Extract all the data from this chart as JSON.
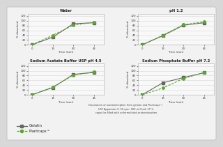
{
  "bg_color": "#d8d8d8",
  "panel_bg": "#efefef",
  "titles": [
    "Water",
    "pH 1.2",
    "Sodium Acetate Buffer USP pH 4.5",
    "Sodium Phosphate Buffer pH 7.2"
  ],
  "time_points": [
    0,
    15,
    30,
    45
  ],
  "gelatin_data": [
    [
      0,
      32,
      88,
      92
    ],
    [
      0,
      38,
      82,
      92
    ],
    [
      0,
      30,
      85,
      93
    ],
    [
      0,
      50,
      72,
      92
    ]
  ],
  "plantcaps_data": [
    [
      0,
      40,
      82,
      94
    ],
    [
      0,
      40,
      84,
      96
    ],
    [
      0,
      32,
      82,
      96
    ],
    [
      0,
      28,
      68,
      93
    ]
  ],
  "gelatin_color": "#666666",
  "plantcaps_color": "#5aab2a",
  "xlabel": "Time (min)",
  "ylabel": "% dissolved",
  "ylim": [
    0,
    130
  ],
  "yticks": [
    0,
    20,
    40,
    60,
    80,
    100,
    120
  ],
  "xticks": [
    0,
    15,
    30,
    45
  ],
  "note_text": "Dissolution of acetaminophen from gelatin and Plantcaps™,\nUSP Apparatus II, 50 rpm, 900 ml fluid, 37°C,\ncapsules filled with unformulated acetaminophen",
  "legend_gelatin": "Gelatin",
  "legend_plantcaps": "Plantcaps™"
}
